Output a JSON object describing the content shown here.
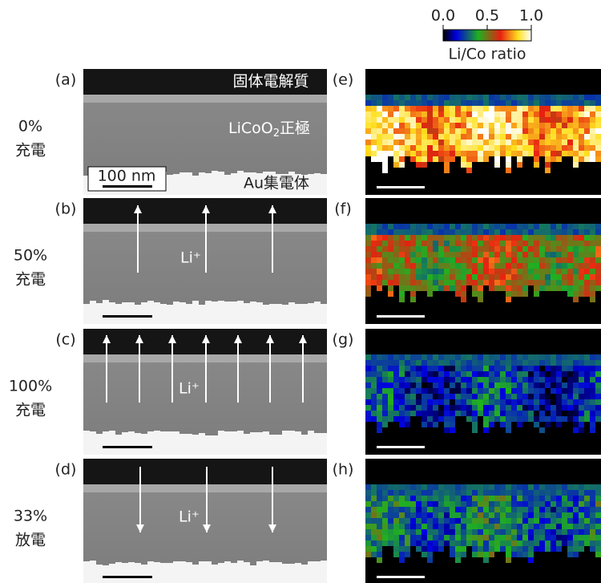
{
  "colorbar": {
    "label": "Li/Co ratio",
    "range": [
      0,
      1
    ],
    "ticks": [
      {
        "value": 0,
        "label": "0.0"
      },
      {
        "value": 0.5,
        "label": "0.5"
      },
      {
        "value": 1,
        "label": "1.0"
      }
    ]
  },
  "rows": [
    {
      "percent": "0%",
      "state": "充電",
      "left_label": "(a)",
      "right_label": "(e)"
    },
    {
      "percent": "50%",
      "state": "充電",
      "left_label": "(b)",
      "right_label": "(f)"
    },
    {
      "percent": "100%",
      "state": "充電",
      "left_label": "(c)",
      "right_label": "(g)"
    },
    {
      "percent": "33%",
      "state": "放電",
      "left_label": "(d)",
      "right_label": "(h)"
    }
  ],
  "annotations": {
    "electrolyte": "固体電解質",
    "cathode_main": "LiCoO",
    "cathode_sub": "2",
    "cathode_tail": "正極",
    "scale": "100 nm",
    "collector": "Au集電体",
    "ion_b": "Li⁺",
    "ion_c": "Li⁺",
    "ion_d": "Li⁺"
  }
}
